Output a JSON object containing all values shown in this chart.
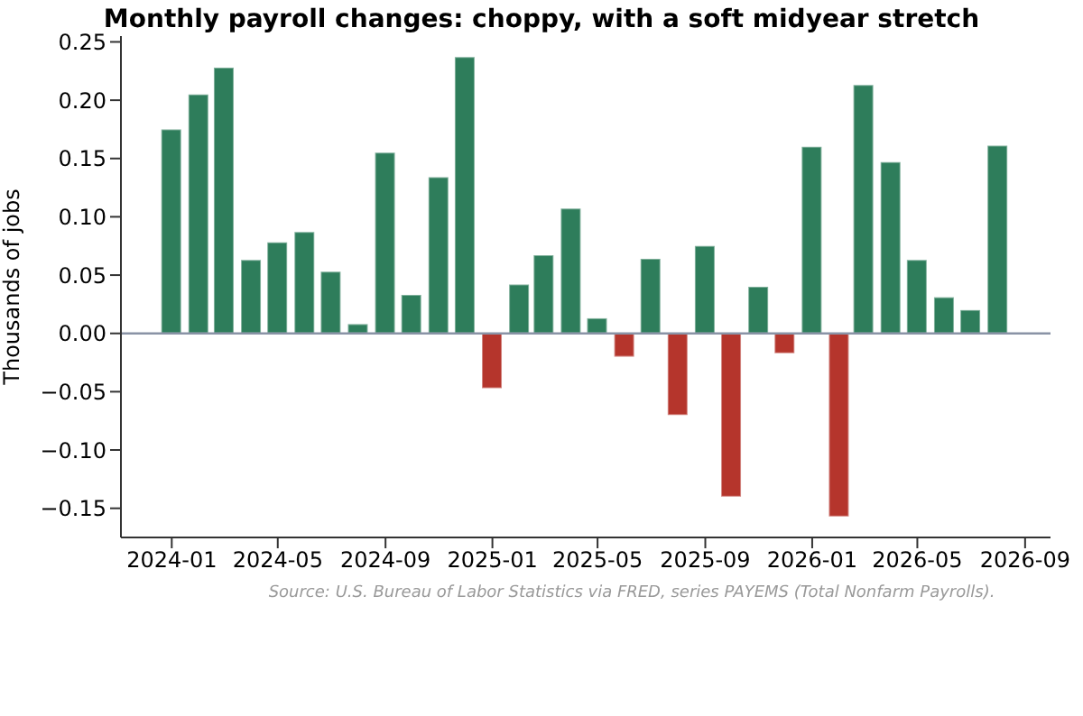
{
  "chart_data": {
    "type": "bar",
    "title": "Monthly payroll changes: choppy, with a soft midyear stretch",
    "ylabel": "Thousands of jobs",
    "annotations": [
      "Source: U.S. Bureau of Labor Statistics via FRED, series PAYEMS (Total Nonfarm Payrolls)."
    ],
    "x": [
      "2024-01",
      "2024-02",
      "2024-03",
      "2024-04",
      "2024-05",
      "2024-06",
      "2024-07",
      "2024-08",
      "2024-09",
      "2024-10",
      "2024-11",
      "2024-12",
      "2025-01",
      "2025-02",
      "2025-03",
      "2025-04",
      "2025-05",
      "2025-06",
      "2025-07",
      "2025-08",
      "2025-09",
      "2025-10",
      "2025-11",
      "2025-12",
      "2026-01",
      "2026-02",
      "2026-03",
      "2026-04",
      "2026-05",
      "2026-06",
      "2026-07",
      "2026-08"
    ],
    "values": [
      0.175,
      0.205,
      0.228,
      0.063,
      0.078,
      0.087,
      0.053,
      0.008,
      0.155,
      0.033,
      0.134,
      0.237,
      -0.047,
      0.042,
      0.067,
      0.107,
      0.013,
      -0.02,
      0.064,
      -0.07,
      0.075,
      -0.14,
      0.04,
      -0.017,
      0.16,
      -0.157,
      0.213,
      0.147,
      0.063,
      0.031,
      0.02,
      0.161
    ],
    "colors": [
      "#2e7d5b",
      "#2e7d5b",
      "#2e7d5b",
      "#2e7d5b",
      "#2e7d5b",
      "#2e7d5b",
      "#2e7d5b",
      "#2e7d5b",
      "#2e7d5b",
      "#2e7d5b",
      "#2e7d5b",
      "#2e7d5b",
      "#b5352c",
      "#2e7d5b",
      "#2e7d5b",
      "#2e7d5b",
      "#2e7d5b",
      "#b5352c",
      "#2e7d5b",
      "#b5352c",
      "#2e7d5b",
      "#b5352c",
      "#2e7d5b",
      "#b5352c",
      "#2e7d5b",
      "#b5352c",
      "#2e7d5b",
      "#2e7d5b",
      "#2e7d5b",
      "#2e7d5b",
      "#2e7d5b",
      "#2e7d5b"
    ],
    "xlim": [
      "2023-11-04",
      "2026-09-30"
    ],
    "xticks": [
      "2024-01",
      "2024-05",
      "2024-09",
      "2025-01",
      "2025-05",
      "2025-09",
      "2026-01",
      "2026-05",
      "2026-09"
    ],
    "ylim": [
      -0.175,
      0.255
    ],
    "yticks": [
      {
        "value": -0.15,
        "label": "−0.15"
      },
      {
        "value": -0.1,
        "label": "−0.10"
      },
      {
        "value": -0.05,
        "label": "−0.05"
      },
      {
        "value": 0,
        "label": "0.00"
      },
      {
        "value": 0.05,
        "label": "0.05"
      },
      {
        "value": 0.1,
        "label": "0.10"
      },
      {
        "value": 0.15,
        "label": "0.15"
      },
      {
        "value": 0.2,
        "label": "0.20"
      },
      {
        "value": 0.25,
        "label": "0.25"
      }
    ],
    "ref_lines": [
      {
        "axis": "y",
        "value": 0,
        "color": "#8a93a6"
      }
    ],
    "grid": false,
    "legend": false
  }
}
